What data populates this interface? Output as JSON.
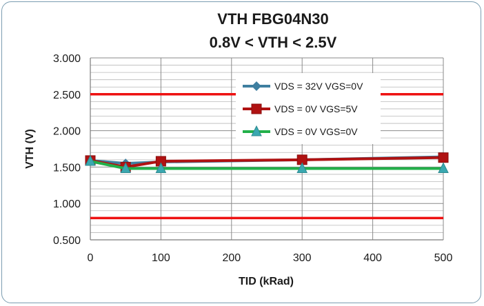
{
  "chart_data": {
    "type": "line",
    "title_line1": "VTH  FBG04N30",
    "title_line2": "0.8V < VTH < 2.5V",
    "xlabel": "TID (kRad)",
    "ylabel": "VTH (V)",
    "xlim": [
      0,
      500
    ],
    "ylim": [
      0.5,
      3.0
    ],
    "x_ticks": [
      "0",
      "100",
      "200",
      "300",
      "400",
      "500"
    ],
    "y_ticks": [
      "3.000",
      "2.500",
      "2.000",
      "1.500",
      "1.000",
      "0.500"
    ],
    "grid": true,
    "legend_position": "top-right inside plot",
    "limits": [
      {
        "value": 2.5,
        "color": "#ee1111"
      },
      {
        "value": 0.8,
        "color": "#ee1111"
      }
    ],
    "series": [
      {
        "name": "VDS = 32V VGS=0V",
        "color": "#3f7fa0",
        "marker": "diamond",
        "x": [
          0,
          50,
          100,
          300,
          500
        ],
        "y": [
          1.59,
          1.55,
          1.57,
          1.6,
          1.64
        ]
      },
      {
        "name": "VDS = 0V VGS=5V",
        "color": "#b01212",
        "marker": "square",
        "x": [
          0,
          50,
          100,
          300,
          500
        ],
        "y": [
          1.59,
          1.5,
          1.58,
          1.6,
          1.63
        ]
      },
      {
        "name": "VDS = 0V VGS=0V",
        "color": "#22b04a",
        "marker": "triangle",
        "x": [
          0,
          50,
          100,
          300,
          500
        ],
        "y": [
          1.58,
          1.48,
          1.48,
          1.48,
          1.48
        ]
      }
    ]
  }
}
